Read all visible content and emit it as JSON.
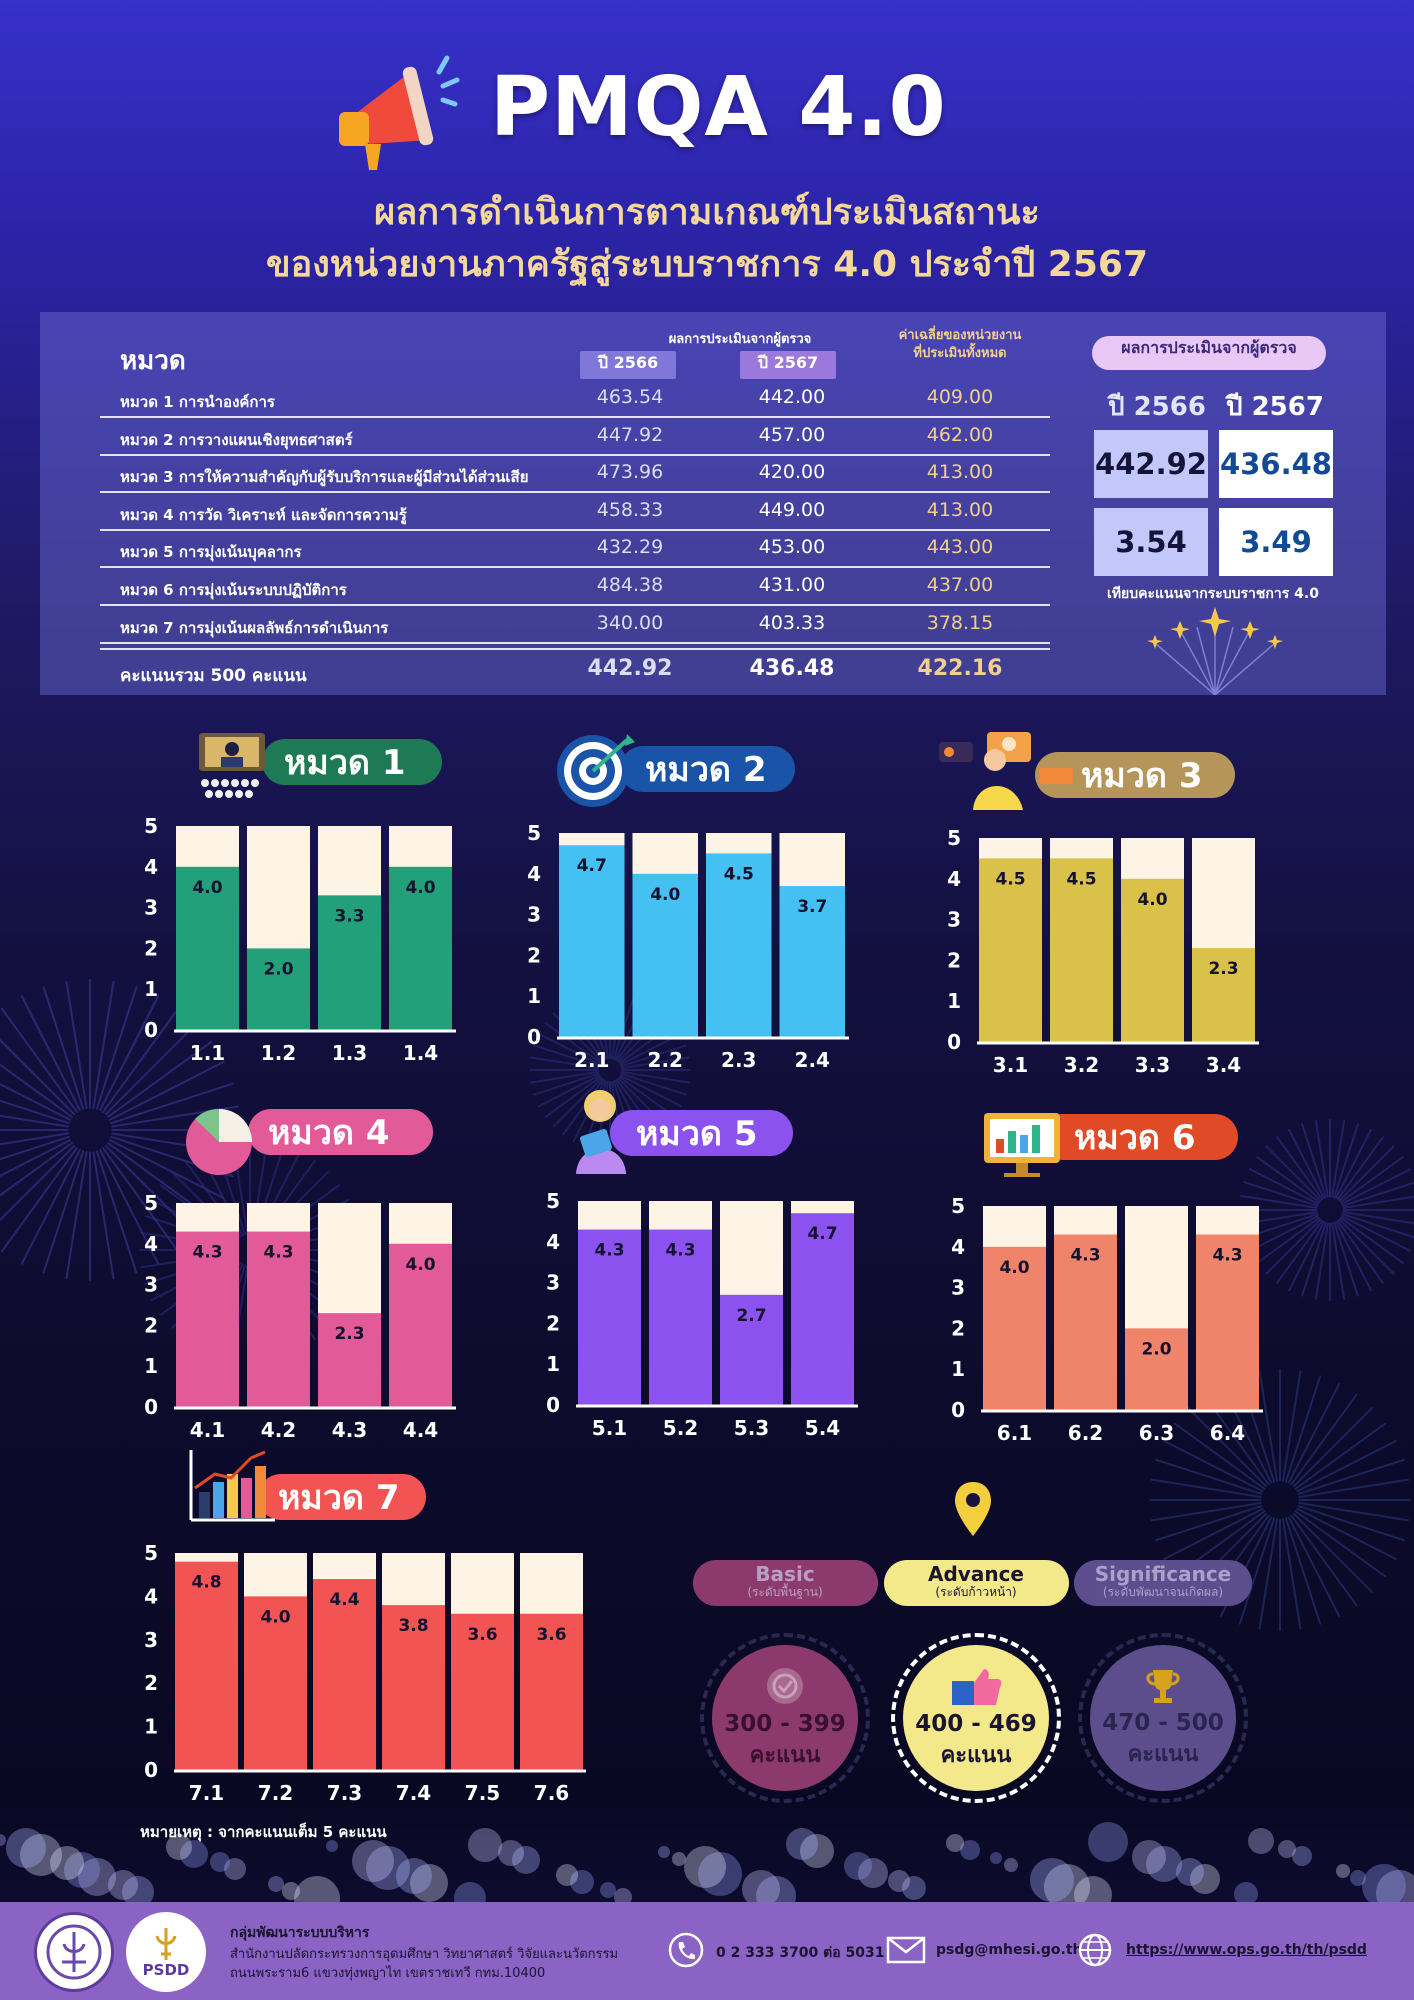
{
  "header": {
    "title": "PMQA 4.0",
    "subtitle_line1": "ผลการดำเนินการตามเกณฑ์ประเมินสถานะ",
    "subtitle_line2": "ของหน่วยงานภาครัฐสู่ระบบราชการ 4.0 ประจำปี 2567"
  },
  "score_table": {
    "category_header": "หมวด",
    "inspector_header": "ผลการประเมินจากผู้ตรวจ",
    "year1": "ปี 2566",
    "year2": "ปี 2567",
    "avg_header_line1": "ค่าเฉลี่ยของหน่วยงาน",
    "avg_header_line2": "ที่ประเมินทั้งหมด",
    "rows": [
      {
        "label": "หมวด 1 การนำองค์การ",
        "y2566": "463.54",
        "y2567": "442.00",
        "avg": "409.00"
      },
      {
        "label": "หมวด 2 การวางแผนเชิงยุทธศาสตร์",
        "y2566": "447.92",
        "y2567": "457.00",
        "avg": "462.00"
      },
      {
        "label": "หมวด 3 การให้ความสำคัญกับผู้รับบริการและผู้มีส่วนได้ส่วนเสีย",
        "y2566": "473.96",
        "y2567": "420.00",
        "avg": "413.00"
      },
      {
        "label": "หมวด 4 การวัด วิเคราะห์ และจัดการความรู้",
        "y2566": "458.33",
        "y2567": "449.00",
        "avg": "413.00"
      },
      {
        "label": "หมวด 5 การมุ่งเน้นบุคลากร",
        "y2566": "432.29",
        "y2567": "453.00",
        "avg": "443.00"
      },
      {
        "label": "หมวด 6 การมุ่งเน้นระบบปฏิบัติการ",
        "y2566": "484.38",
        "y2567": "431.00",
        "avg": "437.00"
      },
      {
        "label": "หมวด 7 การมุ่งเน้นผลลัพธ์การดำเนินการ",
        "y2566": "340.00",
        "y2567": "403.33",
        "avg": "378.15"
      }
    ],
    "total": {
      "label": "คะแนนรวม 500 คะแนน",
      "y2566": "442.92",
      "y2567": "436.48",
      "avg": "422.16"
    }
  },
  "summary": {
    "title": "ผลการประเมินจากผู้ตรวจ",
    "year1": "ปี 2566",
    "year2": "ปี 2567",
    "score1": "442.92",
    "score2": "436.48",
    "equiv1": "3.54",
    "equiv2": "3.49",
    "note": "เทียบคะแนนจากระบบราชการ 4.0"
  },
  "chart_data": [
    {
      "type": "bar",
      "title": "หมวด 1",
      "categories": [
        "1.1",
        "1.2",
        "1.3",
        "1.4"
      ],
      "values": [
        4.0,
        2.0,
        3.3,
        4.0
      ],
      "ylim": [
        0,
        5
      ],
      "color": "#22a07a"
    },
    {
      "type": "bar",
      "title": "หมวด 2",
      "categories": [
        "2.1",
        "2.2",
        "2.3",
        "2.4"
      ],
      "values": [
        4.7,
        4.0,
        4.5,
        3.7
      ],
      "ylim": [
        0,
        5
      ],
      "color": "#45c0f2"
    },
    {
      "type": "bar",
      "title": "หมวด 3",
      "categories": [
        "3.1",
        "3.2",
        "3.3",
        "3.4"
      ],
      "values": [
        4.5,
        4.5,
        4.0,
        2.3
      ],
      "ylim": [
        0,
        5
      ],
      "color": "#d9c14a"
    },
    {
      "type": "bar",
      "title": "หมวด 4",
      "categories": [
        "4.1",
        "4.2",
        "4.3",
        "4.4"
      ],
      "values": [
        4.3,
        4.3,
        2.3,
        4.0
      ],
      "ylim": [
        0,
        5
      ],
      "color": "#e25a98"
    },
    {
      "type": "bar",
      "title": "หมวด 5",
      "categories": [
        "5.1",
        "5.2",
        "5.3",
        "5.4"
      ],
      "values": [
        4.3,
        4.3,
        2.7,
        4.7
      ],
      "ylim": [
        0,
        5
      ],
      "color": "#8b52f0"
    },
    {
      "type": "bar",
      "title": "หมวด 6",
      "categories": [
        "6.1",
        "6.2",
        "6.3",
        "6.4"
      ],
      "values": [
        4.0,
        4.3,
        2.0,
        4.3
      ],
      "ylim": [
        0,
        5
      ],
      "color": "#f0846a"
    },
    {
      "type": "bar",
      "title": "หมวด 7",
      "categories": [
        "7.1",
        "7.2",
        "7.3",
        "7.4",
        "7.5",
        "7.6"
      ],
      "values": [
        4.8,
        4.0,
        4.4,
        3.8,
        3.6,
        3.6
      ],
      "ylim": [
        0,
        5
      ],
      "color": "#f25454"
    }
  ],
  "chart_colors": {
    "track": "#fdf4e6",
    "axis": "#ffffff"
  },
  "footnote": "หมายเหตุ : จากคะแนนเต็ม 5 คะแนน",
  "levels": [
    {
      "name": "Basic",
      "desc": "(ระดับพื้นฐาน)",
      "range": "300 - 399",
      "unit": "คะแนน",
      "icon": "badge-check-icon"
    },
    {
      "name": "Advance",
      "desc": "(ระดับก้าวหน้า)",
      "range": "400 - 469",
      "unit": "คะแนน",
      "icon": "thumbs-up-icon"
    },
    {
      "name": "Significance",
      "desc": "(ระดับพัฒนาจนเกิดผล)",
      "range": "470 - 500",
      "unit": "คะแนน",
      "icon": "trophy-icon"
    }
  ],
  "footer": {
    "org_name": "กลุ่มพัฒนาระบบบริหาร",
    "org_line2": "สำนักงานปลัดกระทรวงการอุดมศึกษา วิทยาศาสตร์ วิจัยและนวัตกรรม",
    "org_line3": "ถนนพระราม6 แขวงทุ่งพญาไท เขตราชเทวี กทม.10400",
    "logo_text": "PSDD",
    "phone": "0 2 333 3700 ต่อ 5031",
    "email": "psdg@mhesi.go.th",
    "website": "https://www.ops.go.th/th/psdd"
  }
}
